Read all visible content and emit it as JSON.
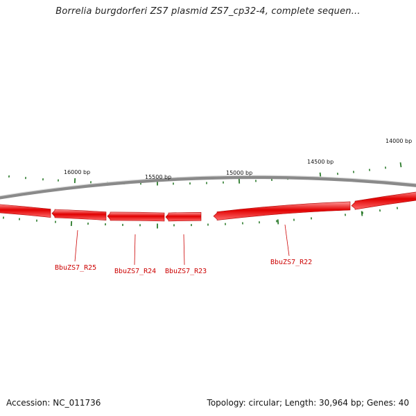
{
  "title": "Borrelia burgdorferi ZS7 plasmid ZS7_cp32-4, complete sequen...",
  "footer": {
    "accession": "Accession: NC_011736",
    "summary": "Topology: circular; Length: 30,964 bp; Genes: 40"
  },
  "colors": {
    "backbone": "#8a8a8a",
    "gene": "#e00000",
    "gene_light": "#ff8080",
    "tick": "#2a7a2a",
    "label": "#cc0000"
  },
  "scale": {
    "labels": [
      "16000 bp",
      "15500 bp",
      "15000 bp",
      "14500 bp",
      "14000 bp"
    ],
    "positions_bp": [
      16000,
      15500,
      15000,
      14500,
      14000
    ]
  },
  "genes": [
    {
      "name": "BbuZS7_R25"
    },
    {
      "name": "BbuZS7_R24"
    },
    {
      "name": "BbuZS7_R23"
    },
    {
      "name": "BbuZS7_R22"
    }
  ]
}
